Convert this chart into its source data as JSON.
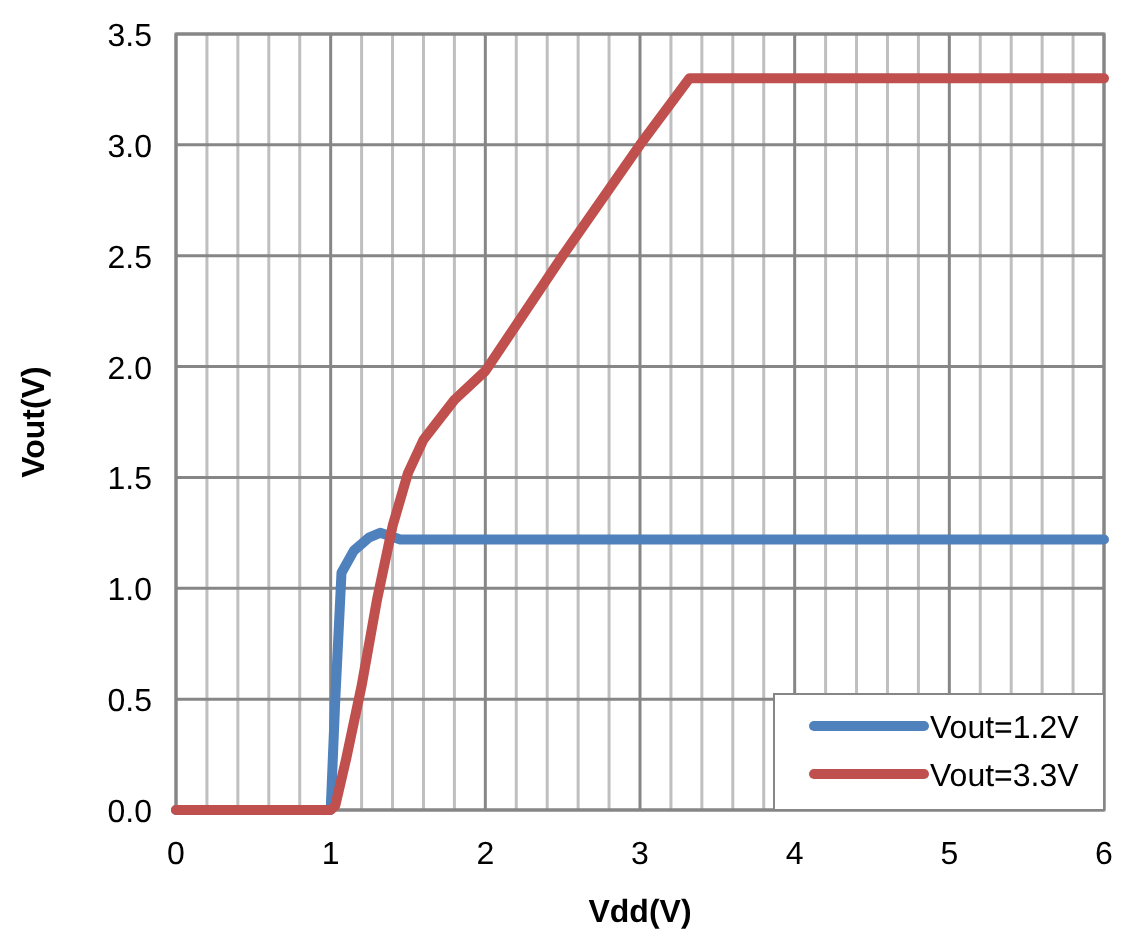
{
  "chart_data": {
    "type": "line",
    "xlabel": "Vdd(V)",
    "ylabel": "Vout(V)",
    "xlim": [
      0,
      6
    ],
    "xticks": [
      0,
      1,
      2,
      3,
      4,
      5,
      6
    ],
    "ylim": [
      0,
      3.5
    ],
    "yticks": [
      {
        "value": 0,
        "label": "0.0"
      },
      {
        "value": 0.5,
        "label": "0.5"
      },
      {
        "value": 1,
        "label": "1.0"
      },
      {
        "value": 1.5,
        "label": "1.5"
      },
      {
        "value": 2,
        "label": "2.0"
      },
      {
        "value": 2.5,
        "label": "2.5"
      },
      {
        "value": 3,
        "label": "3.0"
      },
      {
        "value": 3.5,
        "label": "3.5"
      }
    ],
    "grid": true,
    "legend": "bottom right",
    "line_style": "solid",
    "marker": "none",
    "series": [
      {
        "name": "Vout=1.2V",
        "color": "#4f81bd",
        "x": [
          0,
          1,
          1.03,
          1.07,
          1.15,
          1.25,
          1.32,
          1.45,
          6
        ],
        "values": [
          0,
          0,
          0.5,
          1.07,
          1.17,
          1.23,
          1.25,
          1.22,
          1.22
        ]
      },
      {
        "name": "Vout=3.3V",
        "color": "#c0504d",
        "x": [
          0,
          1,
          1.03,
          1.1,
          1.2,
          1.3,
          1.4,
          1.5,
          1.6,
          1.8,
          2,
          2.5,
          3,
          3.32,
          6
        ],
        "values": [
          0,
          0,
          0.02,
          0.23,
          0.56,
          0.95,
          1.28,
          1.52,
          1.67,
          1.85,
          1.98,
          2.5,
          3,
          3.3,
          3.3
        ]
      }
    ]
  }
}
